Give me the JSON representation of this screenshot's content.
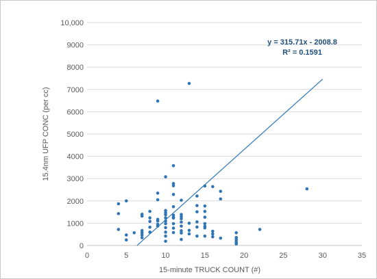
{
  "chart_data": {
    "type": "scatter",
    "xlabel": "15-minute TRUCK COUNT (#)",
    "ylabel": "15.4nm UFP CONC (per cc)",
    "xlim": [
      0,
      35
    ],
    "ylim": [
      0,
      10000
    ],
    "x_ticks": [
      "0",
      "5",
      "10",
      "15",
      "20",
      "25",
      "30",
      "35"
    ],
    "y_ticks": [
      "0",
      "1000",
      "2000",
      "3000",
      "4000",
      "5000",
      "6000",
      "7000",
      "8000",
      "9000",
      "10,000"
    ],
    "grid": "horizontal",
    "marker_color": "#2e75b6",
    "trendline": {
      "type": "linear",
      "equation": "y = 315.71x - 2008.8",
      "r_squared": "R² = 0.1591",
      "slope": 315.71,
      "intercept": -2008.8,
      "x_range": [
        6.36,
        30
      ]
    },
    "points": [
      [
        4,
        1870
      ],
      [
        4,
        1430
      ],
      [
        4,
        720
      ],
      [
        5,
        2000
      ],
      [
        5,
        470
      ],
      [
        5,
        250
      ],
      [
        6,
        570
      ],
      [
        7,
        1400
      ],
      [
        7,
        1320
      ],
      [
        7,
        670
      ],
      [
        7,
        570
      ],
      [
        7,
        470
      ],
      [
        7,
        350
      ],
      [
        8,
        1530
      ],
      [
        8,
        1240
      ],
      [
        8,
        1080
      ],
      [
        8,
        820
      ],
      [
        8,
        600
      ],
      [
        9,
        6480
      ],
      [
        9,
        2350
      ],
      [
        9,
        2050
      ],
      [
        9,
        1170
      ],
      [
        9,
        1100
      ],
      [
        9,
        950
      ],
      [
        9,
        870
      ],
      [
        10,
        3080
      ],
      [
        10,
        1570
      ],
      [
        10,
        1470
      ],
      [
        10,
        1380
      ],
      [
        10,
        1240
      ],
      [
        10,
        1100
      ],
      [
        10,
        980
      ],
      [
        10,
        800
      ],
      [
        10,
        600
      ],
      [
        10,
        420
      ],
      [
        10,
        190
      ],
      [
        11,
        3580
      ],
      [
        11,
        2780
      ],
      [
        11,
        2680
      ],
      [
        11,
        2290
      ],
      [
        11,
        1740
      ],
      [
        11,
        1360
      ],
      [
        11,
        1270
      ],
      [
        11,
        1230
      ],
      [
        11,
        980
      ],
      [
        11,
        780
      ],
      [
        11,
        580
      ],
      [
        12,
        2030
      ],
      [
        12,
        1390
      ],
      [
        12,
        1300
      ],
      [
        12,
        1200
      ],
      [
        12,
        1050
      ],
      [
        12,
        870
      ],
      [
        12,
        660
      ],
      [
        12,
        560
      ],
      [
        12,
        270
      ],
      [
        13,
        7270
      ],
      [
        13,
        1000
      ],
      [
        13,
        680
      ],
      [
        13,
        520
      ],
      [
        14,
        2220
      ],
      [
        14,
        1790
      ],
      [
        14,
        1510
      ],
      [
        14,
        1060
      ],
      [
        14,
        830
      ],
      [
        14,
        420
      ],
      [
        15,
        2670
      ],
      [
        15,
        1770
      ],
      [
        15,
        1530
      ],
      [
        15,
        1270
      ],
      [
        15,
        980
      ],
      [
        15,
        860
      ],
      [
        15,
        790
      ],
      [
        15,
        420
      ],
      [
        16,
        2640
      ],
      [
        16,
        640
      ],
      [
        16,
        520
      ],
      [
        16,
        390
      ],
      [
        17,
        2430
      ],
      [
        17,
        2090
      ],
      [
        17,
        330
      ],
      [
        19,
        570
      ],
      [
        19,
        360
      ],
      [
        19,
        270
      ],
      [
        19,
        200
      ],
      [
        19,
        120
      ],
      [
        19,
        70
      ],
      [
        22,
        720
      ],
      [
        28,
        2540
      ]
    ]
  }
}
